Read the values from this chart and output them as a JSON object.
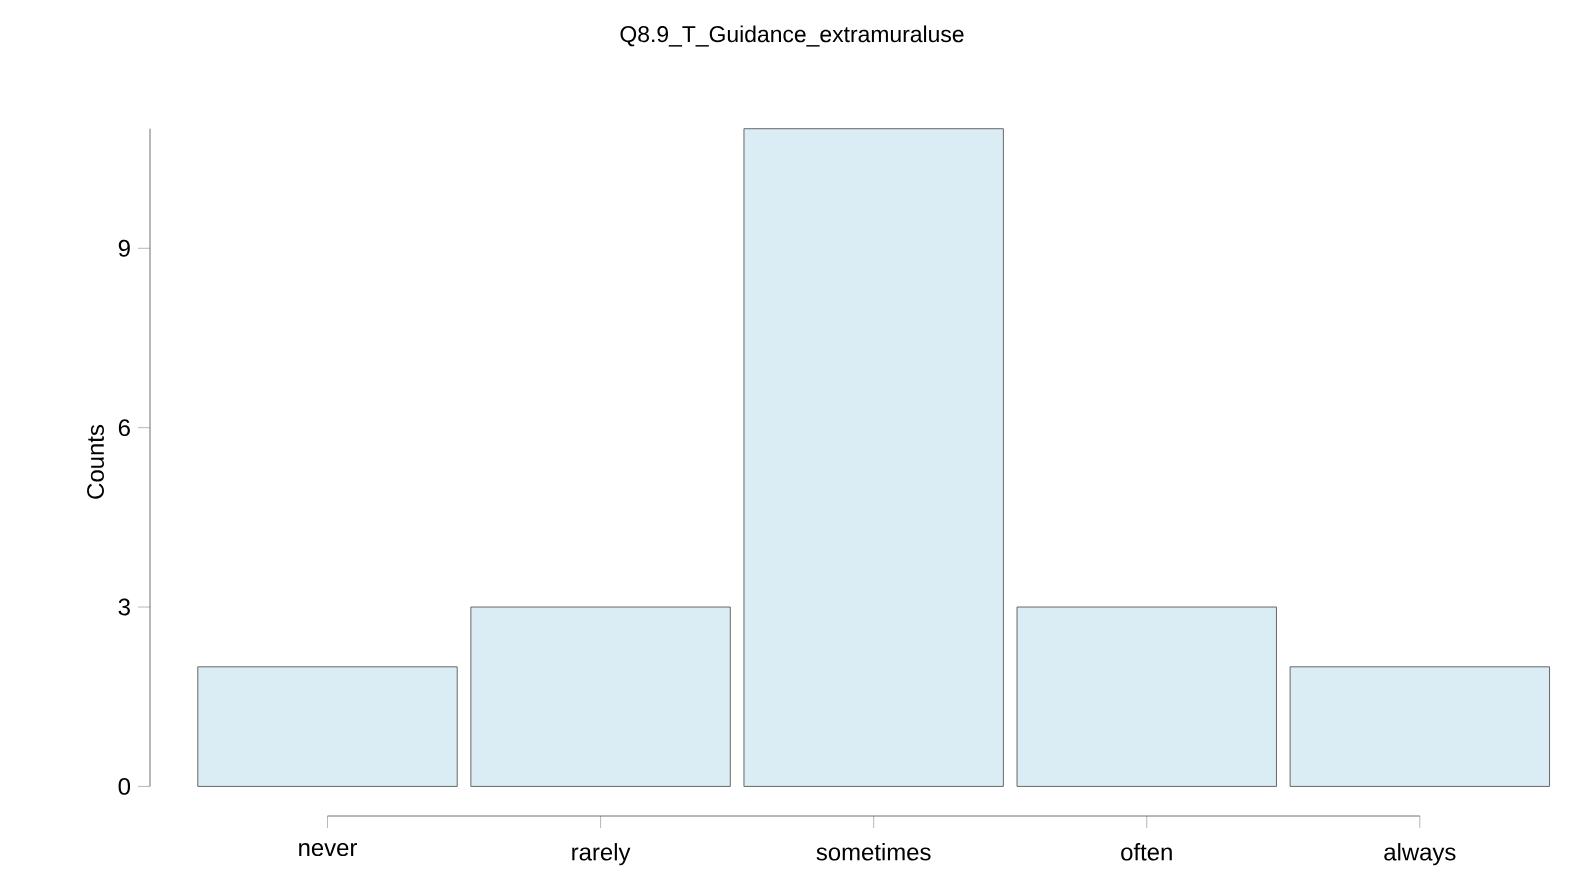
{
  "chart_data": {
    "type": "bar",
    "title": "Q8.9_T_Guidance_extramuraluse",
    "ylabel": "Counts",
    "categories": [
      "never",
      "rarely",
      "sometimes",
      "often",
      "always"
    ],
    "values": [
      2,
      3,
      11,
      3,
      2
    ],
    "color": "#daedf4",
    "ylim": [
      0,
      11
    ],
    "yticks": [
      0,
      3,
      6,
      9
    ]
  }
}
